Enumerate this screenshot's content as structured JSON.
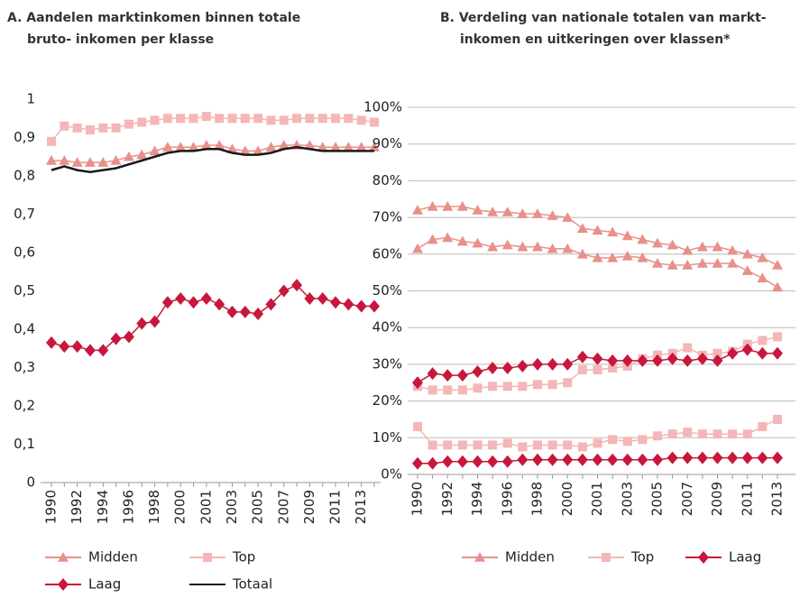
{
  "chart_data": [
    {
      "type": "line",
      "title": [
        "A.  Aandelen marktinkomen binnen totale",
        "bruto- inkomen per klasse"
      ],
      "categories": [
        "1990",
        null,
        "1992",
        null,
        "1994",
        null,
        "1996",
        null,
        "1998",
        null,
        "2000",
        null,
        "2001",
        null,
        "2003",
        null,
        "2005",
        null,
        "2007",
        null,
        "2009",
        null,
        "2011",
        null,
        "2013",
        null
      ],
      "ylim": [
        0,
        1
      ],
      "yticks": [
        0,
        {
          "value": 0.1,
          "label": "0,1"
        },
        {
          "value": 0.2,
          "label": "0,2"
        },
        {
          "value": 0.3,
          "label": "0,3"
        },
        {
          "value": 0.4,
          "label": "0,4"
        },
        {
          "value": 0.5,
          "label": "0,5"
        },
        {
          "value": 0.6,
          "label": "0,6"
        },
        {
          "value": 0.7,
          "label": "0,7"
        },
        {
          "value": 0.8,
          "label": "0,8"
        },
        {
          "value": 0.9,
          "label": "0,9"
        },
        1
      ],
      "grid": false,
      "series": [
        {
          "name": "Midden",
          "color": "#e8908a",
          "marker": "triangle",
          "values": [
            0.84,
            0.84,
            0.835,
            0.835,
            0.835,
            0.84,
            0.85,
            0.855,
            0.865,
            0.875,
            0.875,
            0.875,
            0.88,
            0.88,
            0.87,
            0.865,
            0.865,
            0.875,
            0.88,
            0.88,
            0.88,
            0.875,
            0.875,
            0.875,
            0.875,
            0.875
          ]
        },
        {
          "name": "Top",
          "color": "#f4b6b6",
          "marker": "square",
          "values": [
            0.89,
            0.93,
            0.925,
            0.92,
            0.925,
            0.925,
            0.935,
            0.94,
            0.945,
            0.95,
            0.95,
            0.95,
            0.955,
            0.95,
            0.95,
            0.95,
            0.95,
            0.945,
            0.945,
            0.95,
            0.95,
            0.95,
            0.95,
            0.95,
            0.945,
            0.94
          ]
        },
        {
          "name": "Laag",
          "color": "#c8173c",
          "marker": "diamond",
          "values": [
            0.365,
            0.355,
            0.355,
            0.345,
            0.345,
            0.375,
            0.38,
            0.415,
            0.42,
            0.47,
            0.48,
            0.47,
            0.48,
            0.465,
            0.445,
            0.445,
            0.44,
            0.465,
            0.5,
            0.515,
            0.48,
            0.48,
            0.47,
            0.465,
            0.46,
            0.46
          ]
        },
        {
          "name": "Totaal",
          "color": "#1a1a1a",
          "values": [
            0.815,
            0.825,
            0.815,
            0.81,
            0.815,
            0.82,
            0.83,
            0.84,
            0.85,
            0.86,
            0.865,
            0.865,
            0.87,
            0.87,
            0.86,
            0.855,
            0.855,
            0.86,
            0.87,
            0.875,
            0.87,
            0.865,
            0.865,
            0.865,
            0.865,
            0.865
          ]
        }
      ]
    },
    {
      "type": "line",
      "title": [
        "B.  Verdeling van nationale totalen van markt-",
        "inkomen en uitkeringen over klassen*"
      ],
      "categories": [
        "1990",
        null,
        "1992",
        null,
        "1994",
        null,
        "1996",
        null,
        "1998",
        null,
        "2000",
        null,
        "2001",
        null,
        "2003",
        null,
        "2005",
        null,
        "2007",
        null,
        "2009",
        null,
        "2011",
        null,
        "2013"
      ],
      "ylim": [
        0,
        100
      ],
      "yticks": [
        {
          "value": 0,
          "label": "0%"
        },
        {
          "value": 10,
          "label": "10%"
        },
        {
          "value": 20,
          "label": "20%"
        },
        {
          "value": 30,
          "label": "30%"
        },
        {
          "value": 40,
          "label": "40%"
        },
        {
          "value": 50,
          "label": "50%"
        },
        {
          "value": 60,
          "label": "60%"
        },
        {
          "value": 70,
          "label": "70%"
        },
        {
          "value": 80,
          "label": "80%"
        },
        {
          "value": 90,
          "label": "90%"
        },
        {
          "value": 100,
          "label": "100%"
        }
      ],
      "grid": true,
      "series": [
        {
          "name": "Midden",
          "color": "#e8908a",
          "marker": "triangle",
          "values": [
            72,
            73,
            73,
            73,
            72,
            71.5,
            71.5,
            71,
            71,
            70.5,
            70,
            67,
            66.5,
            66,
            65,
            64,
            63,
            62.5,
            61,
            62,
            62,
            61,
            60,
            59,
            57
          ],
          "values2": [
            61.5,
            64,
            64.5,
            63.5,
            63,
            62,
            62.5,
            62,
            62,
            61.5,
            61.5,
            60,
            59,
            59,
            59.5,
            59,
            57.5,
            57,
            57,
            57.5,
            57.5,
            57.5,
            55.5,
            53.5,
            51
          ]
        },
        {
          "name": "Top",
          "color": "#f4b6b6",
          "marker": "square",
          "values": [
            24,
            23,
            23,
            23,
            23.5,
            24,
            24,
            24,
            24.5,
            24.5,
            25,
            28.5,
            28.5,
            29,
            29.5,
            31.5,
            32.5,
            33,
            34.5,
            32.5,
            33,
            33.5,
            35.5,
            36.5,
            37.5
          ],
          "values2": [
            13,
            8,
            8,
            8,
            8,
            8,
            8.5,
            7.5,
            8,
            8,
            8,
            7.5,
            8.5,
            9.5,
            9,
            9.5,
            10.5,
            11,
            11.5,
            11,
            11,
            11,
            11,
            13,
            15
          ]
        },
        {
          "name": "Laag",
          "color": "#c8173c",
          "marker": "diamond",
          "values": [
            25,
            27.5,
            27,
            27,
            28,
            29,
            29,
            29.5,
            30,
            30,
            30,
            32,
            31.5,
            31,
            31,
            31,
            31,
            31.5,
            31,
            31.5,
            31,
            33,
            34,
            33,
            33
          ],
          "values2": [
            3,
            3,
            3.5,
            3.5,
            3.5,
            3.5,
            3.5,
            4,
            4,
            4,
            4,
            4,
            4,
            4,
            4,
            4,
            4,
            4.5,
            4.5,
            4.5,
            4.5,
            4.5,
            4.5,
            4.5,
            4.5
          ]
        }
      ]
    }
  ]
}
